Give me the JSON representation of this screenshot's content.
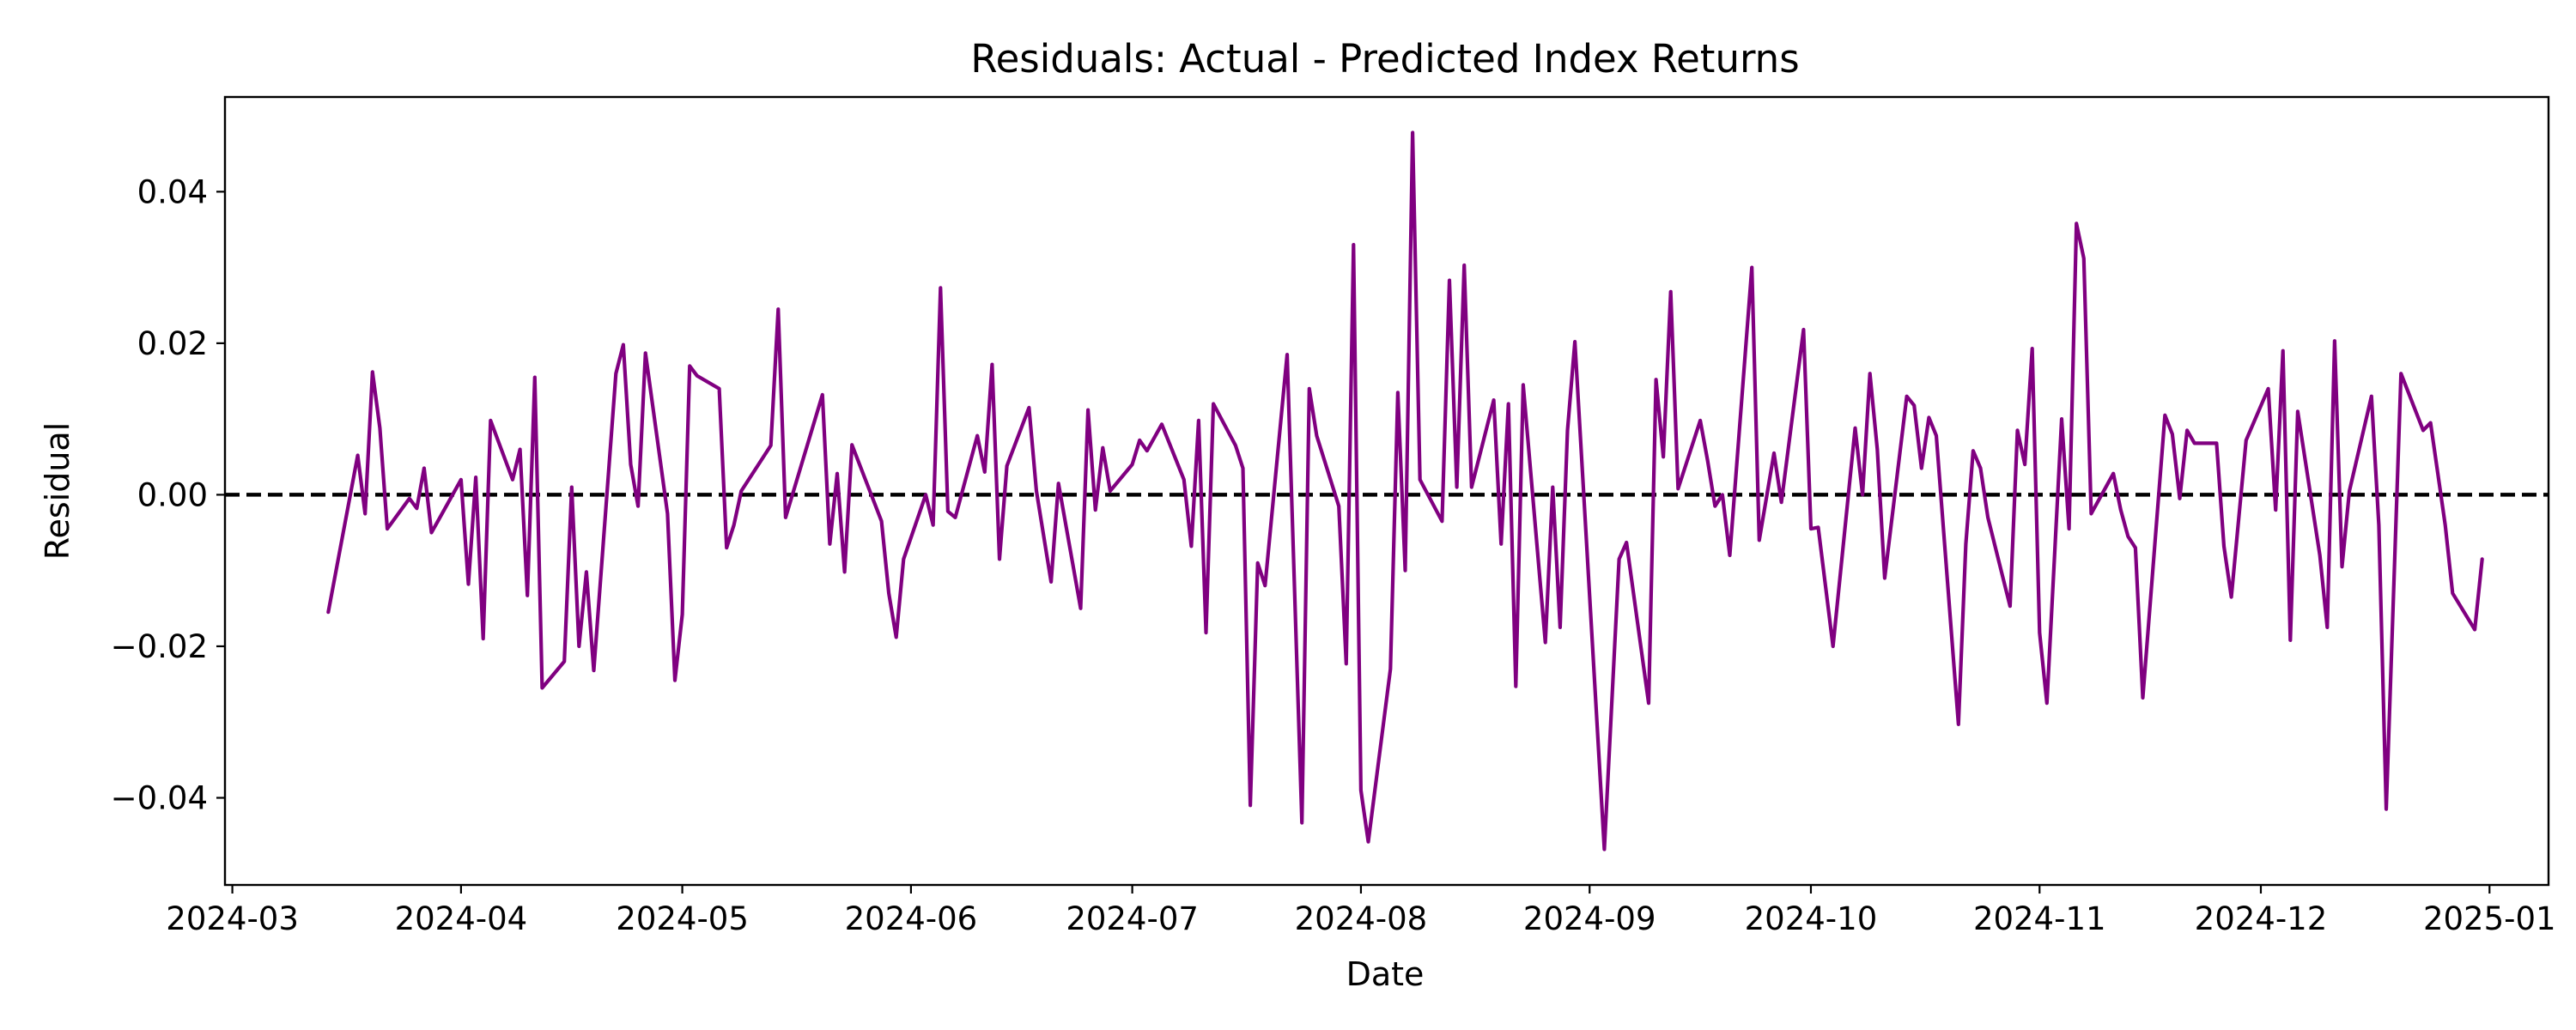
{
  "chart_data": {
    "type": "line",
    "title": "Residuals: Actual - Predicted Index Returns",
    "xlabel": "Date",
    "ylabel": "Residual",
    "xlim": [
      "2024-02-29",
      "2025-01-09"
    ],
    "ylim": [
      -0.0515,
      0.0525
    ],
    "x_ticks": [
      "2024-03-01",
      "2024-04-01",
      "2024-05-01",
      "2024-06-01",
      "2024-07-01",
      "2024-08-01",
      "2024-09-01",
      "2024-10-01",
      "2024-11-01",
      "2024-12-01",
      "2025-01-01"
    ],
    "x_tick_labels": [
      "2024-03",
      "2024-04",
      "2024-05",
      "2024-06",
      "2024-07",
      "2024-08",
      "2024-09",
      "2024-10",
      "2024-11",
      "2024-12",
      "2025-01"
    ],
    "y_ticks": [
      -0.04,
      -0.02,
      0.0,
      0.02,
      0.04
    ],
    "y_tick_labels": [
      "−0.04",
      "−0.02",
      "0.00",
      "0.02",
      "0.04"
    ],
    "grid": false,
    "reference_line": {
      "y": 0,
      "style": "dashed",
      "color": "#000000"
    },
    "series": [
      {
        "color": "#800080",
        "points": [
          [
            "2024-03-14",
            -0.0155
          ],
          [
            "2024-03-18",
            0.0052
          ],
          [
            "2024-03-19",
            -0.0025
          ],
          [
            "2024-03-20",
            0.0162
          ],
          [
            "2024-03-21",
            0.0088
          ],
          [
            "2024-03-22",
            -0.0045
          ],
          [
            "2024-03-25",
            -0.0005
          ],
          [
            "2024-03-26",
            -0.0018
          ],
          [
            "2024-03-27",
            0.0035
          ],
          [
            "2024-03-28",
            -0.005
          ],
          [
            "2024-04-01",
            0.002
          ],
          [
            "2024-04-02",
            -0.0118
          ],
          [
            "2024-04-03",
            0.0023
          ],
          [
            "2024-04-04",
            -0.019
          ],
          [
            "2024-04-05",
            0.0098
          ],
          [
            "2024-04-08",
            0.002
          ],
          [
            "2024-04-09",
            0.006
          ],
          [
            "2024-04-10",
            -0.0133
          ],
          [
            "2024-04-11",
            0.0155
          ],
          [
            "2024-04-12",
            -0.0255
          ],
          [
            "2024-04-15",
            -0.022
          ],
          [
            "2024-04-16",
            0.001
          ],
          [
            "2024-04-17",
            -0.02
          ],
          [
            "2024-04-18",
            -0.0102
          ],
          [
            "2024-04-19",
            -0.0232
          ],
          [
            "2024-04-22",
            0.016
          ],
          [
            "2024-04-23",
            0.0198
          ],
          [
            "2024-04-24",
            0.004
          ],
          [
            "2024-04-25",
            -0.0015
          ],
          [
            "2024-04-26",
            0.0187
          ],
          [
            "2024-04-29",
            -0.0025
          ],
          [
            "2024-04-30",
            -0.0245
          ],
          [
            "2024-05-01",
            -0.0158
          ],
          [
            "2024-05-02",
            0.017
          ],
          [
            "2024-05-03",
            0.0157
          ],
          [
            "2024-05-06",
            0.014
          ],
          [
            "2024-05-07",
            -0.007
          ],
          [
            "2024-05-08",
            -0.004
          ],
          [
            "2024-05-09",
            0.0005
          ],
          [
            "2024-05-13",
            0.0065
          ],
          [
            "2024-05-14",
            0.0245
          ],
          [
            "2024-05-15",
            -0.003
          ],
          [
            "2024-05-20",
            0.0132
          ],
          [
            "2024-05-21",
            -0.0065
          ],
          [
            "2024-05-22",
            0.0028
          ],
          [
            "2024-05-23",
            -0.0102
          ],
          [
            "2024-05-24",
            0.0066
          ],
          [
            "2024-05-28",
            -0.0035
          ],
          [
            "2024-05-29",
            -0.013
          ],
          [
            "2024-05-30",
            -0.0188
          ],
          [
            "2024-05-31",
            -0.0085
          ],
          [
            "2024-06-03",
            0.0
          ],
          [
            "2024-06-04",
            -0.004
          ],
          [
            "2024-06-05",
            0.0273
          ],
          [
            "2024-06-06",
            -0.0022
          ],
          [
            "2024-06-07",
            -0.003
          ],
          [
            "2024-06-10",
            0.0078
          ],
          [
            "2024-06-11",
            0.003
          ],
          [
            "2024-06-12",
            0.0172
          ],
          [
            "2024-06-13",
            -0.0085
          ],
          [
            "2024-06-14",
            0.0038
          ],
          [
            "2024-06-17",
            0.0115
          ],
          [
            "2024-06-18",
            0.0005
          ],
          [
            "2024-06-20",
            -0.0115
          ],
          [
            "2024-06-21",
            0.0015
          ],
          [
            "2024-06-24",
            -0.015
          ],
          [
            "2024-06-25",
            0.0112
          ],
          [
            "2024-06-26",
            -0.002
          ],
          [
            "2024-06-27",
            0.0062
          ],
          [
            "2024-06-28",
            0.0005
          ],
          [
            "2024-07-01",
            0.004
          ],
          [
            "2024-07-02",
            0.0072
          ],
          [
            "2024-07-03",
            0.0058
          ],
          [
            "2024-07-05",
            0.0093
          ],
          [
            "2024-07-08",
            0.002
          ],
          [
            "2024-07-09",
            -0.0068
          ],
          [
            "2024-07-10",
            0.0098
          ],
          [
            "2024-07-11",
            -0.0182
          ],
          [
            "2024-07-12",
            0.012
          ],
          [
            "2024-07-15",
            0.0065
          ],
          [
            "2024-07-16",
            0.0035
          ],
          [
            "2024-07-17",
            -0.041
          ],
          [
            "2024-07-18",
            -0.009
          ],
          [
            "2024-07-19",
            -0.012
          ],
          [
            "2024-07-22",
            0.0185
          ],
          [
            "2024-07-24",
            -0.0433
          ],
          [
            "2024-07-25",
            0.014
          ],
          [
            "2024-07-26",
            0.0078
          ],
          [
            "2024-07-29",
            -0.0015
          ],
          [
            "2024-07-30",
            -0.0223
          ],
          [
            "2024-07-31",
            0.033
          ],
          [
            "2024-08-01",
            -0.039
          ],
          [
            "2024-08-02",
            -0.0458
          ],
          [
            "2024-08-05",
            -0.023
          ],
          [
            "2024-08-06",
            0.0135
          ],
          [
            "2024-08-07",
            -0.01
          ],
          [
            "2024-08-08",
            0.0478
          ],
          [
            "2024-08-09",
            0.002
          ],
          [
            "2024-08-12",
            -0.0035
          ],
          [
            "2024-08-13",
            0.0283
          ],
          [
            "2024-08-14",
            0.001
          ],
          [
            "2024-08-15",
            0.0303
          ],
          [
            "2024-08-16",
            0.001
          ],
          [
            "2024-08-19",
            0.0125
          ],
          [
            "2024-08-20",
            -0.0065
          ],
          [
            "2024-08-21",
            0.012
          ],
          [
            "2024-08-22",
            -0.0253
          ],
          [
            "2024-08-23",
            0.0145
          ],
          [
            "2024-08-26",
            -0.0195
          ],
          [
            "2024-08-27",
            0.001
          ],
          [
            "2024-08-28",
            -0.0175
          ],
          [
            "2024-08-29",
            0.0085
          ],
          [
            "2024-08-30",
            0.0202
          ],
          [
            "2024-09-03",
            -0.0468
          ],
          [
            "2024-09-05",
            -0.0085
          ],
          [
            "2024-09-06",
            -0.0063
          ],
          [
            "2024-09-09",
            -0.0275
          ],
          [
            "2024-09-10",
            0.0152
          ],
          [
            "2024-09-11",
            0.005
          ],
          [
            "2024-09-12",
            0.0268
          ],
          [
            "2024-09-13",
            0.0008
          ],
          [
            "2024-09-16",
            0.0098
          ],
          [
            "2024-09-17",
            0.0045
          ],
          [
            "2024-09-18",
            -0.0015
          ],
          [
            "2024-09-19",
            0.0
          ],
          [
            "2024-09-20",
            -0.008
          ],
          [
            "2024-09-23",
            0.03
          ],
          [
            "2024-09-24",
            -0.006
          ],
          [
            "2024-09-26",
            0.0055
          ],
          [
            "2024-09-27",
            -0.001
          ],
          [
            "2024-09-30",
            0.0218
          ],
          [
            "2024-10-01",
            -0.0045
          ],
          [
            "2024-10-02",
            -0.0043
          ],
          [
            "2024-10-04",
            -0.02
          ],
          [
            "2024-10-07",
            0.0088
          ],
          [
            "2024-10-08",
            0.0
          ],
          [
            "2024-10-09",
            0.016
          ],
          [
            "2024-10-10",
            0.006
          ],
          [
            "2024-10-11",
            -0.011
          ],
          [
            "2024-10-14",
            0.013
          ],
          [
            "2024-10-15",
            0.0118
          ],
          [
            "2024-10-16",
            0.0035
          ],
          [
            "2024-10-17",
            0.0102
          ],
          [
            "2024-10-18",
            0.0078
          ],
          [
            "2024-10-21",
            -0.0303
          ],
          [
            "2024-10-22",
            -0.0065
          ],
          [
            "2024-10-23",
            0.0058
          ],
          [
            "2024-10-24",
            0.0035
          ],
          [
            "2024-10-25",
            -0.003
          ],
          [
            "2024-10-28",
            -0.0147
          ],
          [
            "2024-10-29",
            0.0085
          ],
          [
            "2024-10-30",
            0.004
          ],
          [
            "2024-10-31",
            0.0193
          ],
          [
            "2024-11-01",
            -0.0182
          ],
          [
            "2024-11-02",
            -0.0275
          ],
          [
            "2024-11-04",
            0.01
          ],
          [
            "2024-11-05",
            -0.0045
          ],
          [
            "2024-11-06",
            0.0358
          ],
          [
            "2024-11-07",
            0.0312
          ],
          [
            "2024-11-08",
            -0.0025
          ],
          [
            "2024-11-11",
            0.0028
          ],
          [
            "2024-11-12",
            -0.002
          ],
          [
            "2024-11-13",
            -0.0055
          ],
          [
            "2024-11-14",
            -0.007
          ],
          [
            "2024-11-15",
            -0.0268
          ],
          [
            "2024-11-18",
            0.0105
          ],
          [
            "2024-11-19",
            0.008
          ],
          [
            "2024-11-20",
            -0.0005
          ],
          [
            "2024-11-21",
            0.0085
          ],
          [
            "2024-11-22",
            0.0068
          ],
          [
            "2024-11-25",
            0.0068
          ],
          [
            "2024-11-26",
            -0.0068
          ],
          [
            "2024-11-27",
            -0.0135
          ],
          [
            "2024-11-29",
            0.0072
          ],
          [
            "2024-12-02",
            0.014
          ],
          [
            "2024-12-03",
            -0.002
          ],
          [
            "2024-12-04",
            0.019
          ],
          [
            "2024-12-05",
            -0.0192
          ],
          [
            "2024-12-06",
            0.011
          ],
          [
            "2024-12-09",
            -0.008
          ],
          [
            "2024-12-10",
            -0.0175
          ],
          [
            "2024-12-11",
            0.0203
          ],
          [
            "2024-12-12",
            -0.0095
          ],
          [
            "2024-12-13",
            0.0005
          ],
          [
            "2024-12-16",
            0.013
          ],
          [
            "2024-12-17",
            -0.004
          ],
          [
            "2024-12-18",
            -0.0415
          ],
          [
            "2024-12-20",
            0.016
          ],
          [
            "2024-12-23",
            0.0085
          ],
          [
            "2024-12-24",
            0.0095
          ],
          [
            "2024-12-26",
            -0.004
          ],
          [
            "2024-12-27",
            -0.013
          ],
          [
            "2024-12-30",
            -0.0178
          ],
          [
            "2024-12-31",
            -0.0085
          ]
        ]
      }
    ]
  }
}
